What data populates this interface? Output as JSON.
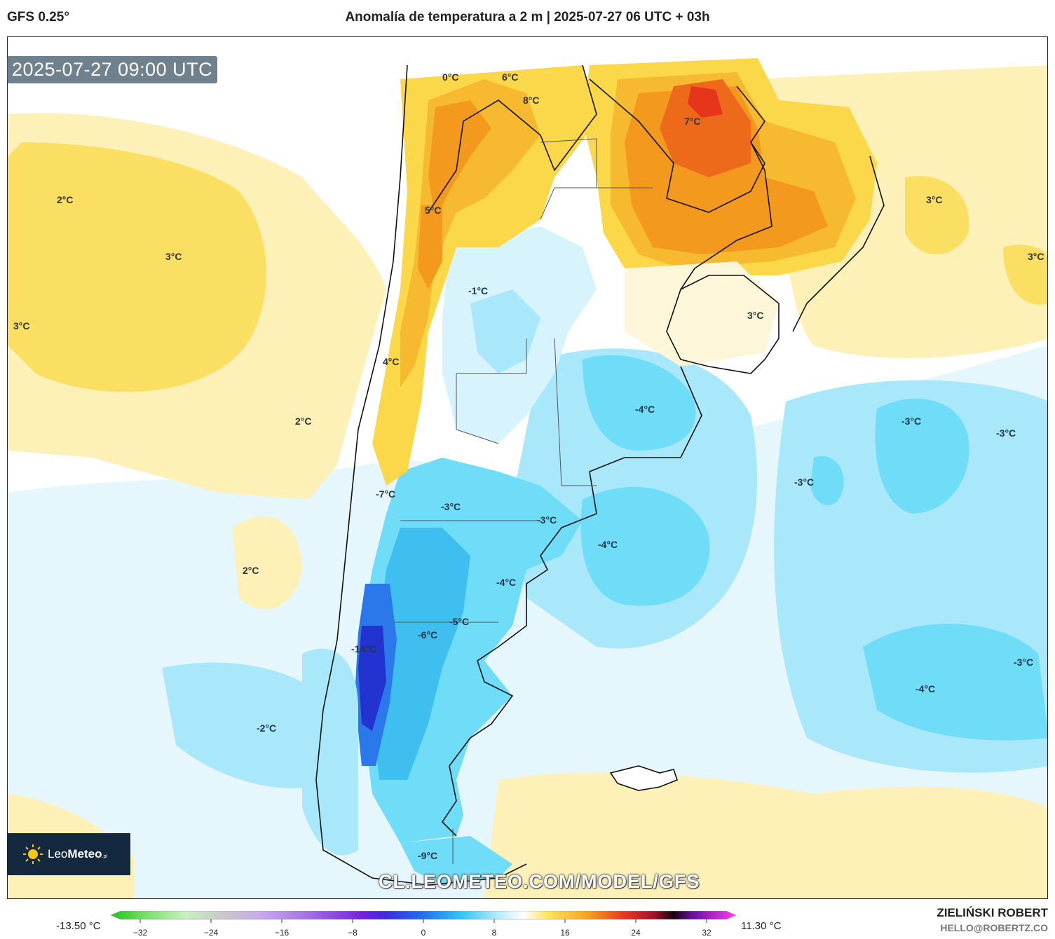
{
  "header": {
    "model": "GFS 0.25°",
    "title": "Anomalía de temperatura a 2 m | 2025-07-27 06 UTC + 03h"
  },
  "map": {
    "timestamp": "2025-07-27 09:00 UTC",
    "watermark": "CL.LEOMETEO.COM/MODEL/GFS",
    "labels": [
      "0°C",
      "6°C",
      "8°C",
      "7°C",
      "5°C",
      "-1°C",
      "4°C",
      "2°C",
      "3°C",
      "3°C",
      "3°C",
      "3°C",
      "3°C",
      "2°C",
      "2°C",
      "-4°C",
      "-3°C",
      "-3°C",
      "-3°C",
      "-7°C",
      "-3°C",
      "-3°C",
      "-4°C",
      "-4°C",
      "-5°C",
      "-6°C",
      "-14°C",
      "-2°C",
      "-4°C",
      "-3°C",
      "-9°C"
    ],
    "colors": {
      "warm": "#fbd84a",
      "hot": "#f39a1e",
      "cold": "#55d6f5",
      "coldest": "#2233d0"
    }
  },
  "logo": {
    "name_light": "Leo",
    "name_bold": "Meteo",
    "suffix": ".pl"
  },
  "colorbar": {
    "min_label": "-13.50 °C",
    "max_label": "11.30 °C",
    "ticks": [
      "−32",
      "−24",
      "−16",
      "−8",
      "0",
      "8",
      "16",
      "24",
      "32"
    ]
  },
  "credits": {
    "author": "ZIELIŃSKI ROBERT",
    "email": "HELLO@ROBERTZ.CO"
  }
}
